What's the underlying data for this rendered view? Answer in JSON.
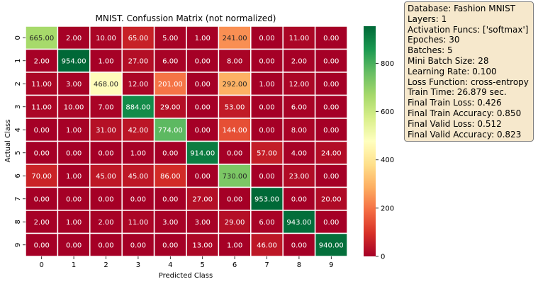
{
  "chart_data": {
    "type": "heatmap",
    "title": "MNIST. Confussion Matrix (not normalized)",
    "xlabel": "Predicted Class",
    "ylabel": "Actual Class",
    "x_categories": [
      "0",
      "1",
      "2",
      "3",
      "4",
      "5",
      "6",
      "7",
      "8",
      "9"
    ],
    "y_categories": [
      "0",
      "1",
      "2",
      "3",
      "4",
      "5",
      "6",
      "7",
      "8",
      "9"
    ],
    "values": [
      [
        665,
        2,
        10,
        65,
        5,
        1,
        241,
        0,
        11,
        0
      ],
      [
        2,
        954,
        1,
        27,
        6,
        0,
        8,
        0,
        2,
        0
      ],
      [
        11,
        3,
        468,
        12,
        201,
        0,
        292,
        1,
        12,
        0
      ],
      [
        11,
        10,
        7,
        884,
        29,
        0,
        53,
        0,
        6,
        0
      ],
      [
        0,
        1,
        31,
        42,
        774,
        0,
        144,
        0,
        8,
        0
      ],
      [
        0,
        0,
        0,
        1,
        0,
        914,
        0,
        57,
        4,
        24
      ],
      [
        70,
        1,
        45,
        45,
        86,
        0,
        730,
        0,
        23,
        0
      ],
      [
        0,
        0,
        0,
        0,
        0,
        27,
        0,
        953,
        0,
        20
      ],
      [
        2,
        1,
        2,
        11,
        3,
        3,
        29,
        6,
        943,
        0
      ],
      [
        0,
        0,
        0,
        0,
        0,
        13,
        1,
        46,
        0,
        940
      ]
    ],
    "value_format_decimals": 2,
    "colormap": "RdYlGn",
    "vmin": 0,
    "vmax": 954,
    "colorbar": {
      "ticks": [
        0,
        200,
        400,
        600,
        800
      ],
      "tick_labels": [
        "0",
        "200",
        "400",
        "600",
        "800"
      ]
    },
    "legend": "none"
  },
  "info_box": {
    "lines": [
      "Database: Fashion MNIST",
      "Layers: 1",
      "Activation Funcs: ['softmax']",
      "Epoches: 30",
      "Batches: 5",
      "Mini Batch Size: 28",
      "Learning Rate: 0.100",
      "Loss Function: cross-entropy",
      "Train Time: 26.879 sec.",
      "Final Train Loss: 0.426",
      "Final Train Accuracy: 0.850",
      "Final Valid Loss: 0.512",
      "Final Valid Accuracy: 0.823"
    ]
  }
}
